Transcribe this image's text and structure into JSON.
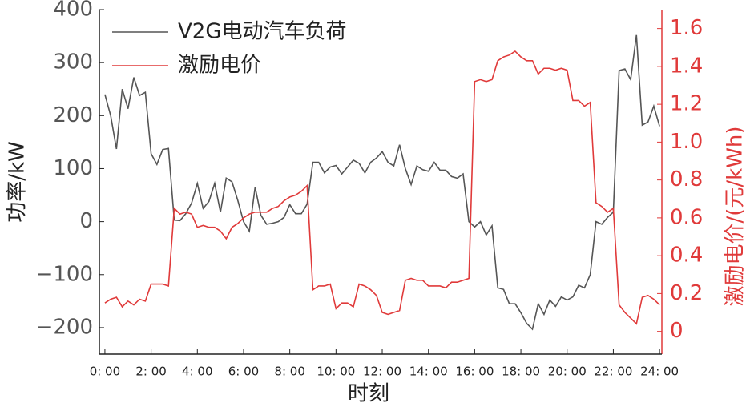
{
  "chart_data": {
    "type": "line",
    "x_label": "时刻",
    "y_label": "功率/kW",
    "y2_label": "激励电价/(元/kWh)",
    "x": [
      0,
      0.25,
      0.5,
      0.75,
      1,
      1.25,
      1.5,
      1.75,
      2,
      2.25,
      2.5,
      2.75,
      3,
      3.25,
      3.5,
      3.75,
      4,
      4.25,
      4.5,
      4.75,
      5,
      5.25,
      5.5,
      5.75,
      6,
      6.25,
      6.5,
      6.75,
      7,
      7.25,
      7.5,
      7.75,
      8,
      8.25,
      8.5,
      8.75,
      9,
      9.25,
      9.5,
      9.75,
      10,
      10.25,
      10.5,
      10.75,
      11,
      11.25,
      11.5,
      11.75,
      12,
      12.25,
      12.5,
      12.75,
      13,
      13.25,
      13.5,
      13.75,
      14,
      14.25,
      14.5,
      14.75,
      15,
      15.25,
      15.5,
      15.75,
      16,
      16.25,
      16.5,
      16.75,
      17,
      17.25,
      17.5,
      17.75,
      18,
      18.25,
      18.5,
      18.75,
      19,
      19.25,
      19.5,
      19.75,
      20,
      20.25,
      20.5,
      20.75,
      21,
      21.25,
      21.5,
      21.75,
      22,
      22.25,
      22.5,
      22.75,
      23,
      23.25,
      23.5,
      23.75,
      24
    ],
    "series": [
      {
        "name": "V2G电动汽车负荷",
        "color": "#555555",
        "axis": "y",
        "values": [
          240,
          200,
          137,
          250,
          213,
          272,
          238,
          244,
          128,
          108,
          136,
          138,
          3,
          2,
          15,
          35,
          72,
          25,
          38,
          72,
          18,
          82,
          75,
          40,
          0,
          -18,
          65,
          12,
          -5,
          -3,
          0,
          8,
          32,
          15,
          15,
          33,
          112,
          112,
          92,
          103,
          106,
          90,
          103,
          116,
          110,
          92,
          112,
          120,
          132,
          112,
          105,
          145,
          100,
          70,
          105,
          98,
          95,
          112,
          97,
          97,
          85,
          82,
          90,
          0,
          -10,
          0,
          -25,
          -8,
          -125,
          -128,
          -155,
          -155,
          -172,
          -192,
          -203,
          -155,
          -175,
          -148,
          -160,
          -142,
          -148,
          -142,
          -120,
          -125,
          -100,
          0,
          -5,
          8,
          18,
          285,
          288,
          268,
          352,
          182,
          188,
          218,
          180
        ]
      },
      {
        "name": "激励电价",
        "color": "#e03a3a",
        "axis": "y2",
        "values": [
          0.15,
          0.17,
          0.18,
          0.13,
          0.16,
          0.14,
          0.17,
          0.16,
          0.25,
          0.25,
          0.25,
          0.24,
          0.65,
          0.62,
          0.63,
          0.62,
          0.55,
          0.56,
          0.55,
          0.55,
          0.53,
          0.49,
          0.55,
          0.57,
          0.6,
          0.62,
          0.63,
          0.63,
          0.63,
          0.65,
          0.66,
          0.69,
          0.71,
          0.72,
          0.74,
          0.77,
          0.22,
          0.24,
          0.24,
          0.25,
          0.12,
          0.15,
          0.15,
          0.13,
          0.25,
          0.24,
          0.22,
          0.19,
          0.1,
          0.09,
          0.1,
          0.11,
          0.27,
          0.28,
          0.27,
          0.27,
          0.24,
          0.24,
          0.24,
          0.23,
          0.26,
          0.26,
          0.27,
          0.28,
          1.32,
          1.33,
          1.32,
          1.33,
          1.43,
          1.45,
          1.46,
          1.48,
          1.45,
          1.43,
          1.43,
          1.36,
          1.39,
          1.39,
          1.38,
          1.39,
          1.38,
          1.22,
          1.22,
          1.19,
          1.21,
          0.68,
          0.66,
          0.63,
          0.65,
          0.14,
          0.1,
          0.07,
          0.04,
          0.18,
          0.19,
          0.17,
          0.14
        ]
      }
    ],
    "xlim": [
      -0.24,
      24.1
    ],
    "xticks": [
      {
        "value": 0,
        "label": "0: 00"
      },
      {
        "value": 2,
        "label": "2: 00"
      },
      {
        "value": 4,
        "label": "4: 00"
      },
      {
        "value": 6,
        "label": "6: 00"
      },
      {
        "value": 8,
        "label": "8: 00"
      },
      {
        "value": 10,
        "label": "10: 00"
      },
      {
        "value": 12,
        "label": "12: 00"
      },
      {
        "value": 14,
        "label": "14: 00"
      },
      {
        "value": 16,
        "label": "16: 00"
      },
      {
        "value": 18,
        "label": "18: 00"
      },
      {
        "value": 20,
        "label": "20: 00"
      },
      {
        "value": 22,
        "label": "22: 00"
      },
      {
        "value": 24,
        "label": "24: 00"
      }
    ],
    "ylim": [
      -250,
      400
    ],
    "yticks": [
      {
        "value": -200,
        "label": "−200"
      },
      {
        "value": -100,
        "label": "−100"
      },
      0,
      100,
      200,
      300,
      400
    ],
    "y2lim": [
      -0.12,
      1.7
    ],
    "y2ticks": [
      0,
      0.2,
      0.4,
      0.6,
      0.8,
      {
        "value": 1,
        "label": "1.0"
      },
      1.2,
      1.4,
      1.6
    ],
    "legend": "upper left"
  }
}
